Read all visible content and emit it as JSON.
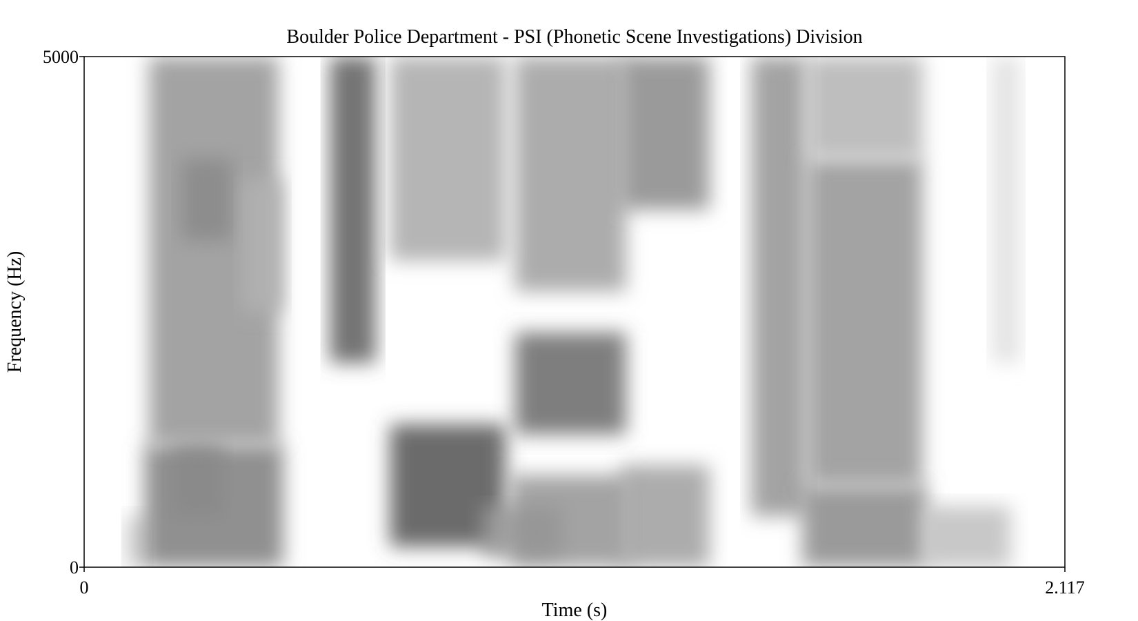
{
  "chart_data": {
    "type": "heatmap",
    "title": "Boulder Police Department - PSI (Phonetic Scene Investigations) Division",
    "xlabel": "Time (s)",
    "ylabel": "Frequency (Hz)",
    "xlim": [
      0,
      2.117
    ],
    "ylim": [
      0,
      5000
    ],
    "x_tick_labels": [
      "0",
      "2.117"
    ],
    "y_tick_labels": [
      "0",
      "5000"
    ],
    "colormap": "grayscale (white = low energy, black = high energy)",
    "grid": false,
    "legend": "none",
    "energy_regions": [
      {
        "t0": 0.09,
        "t1": 0.14,
        "f0": 0,
        "f1": 500,
        "intensity": 0.25
      },
      {
        "t0": 0.13,
        "t1": 0.43,
        "f0": 0,
        "f1": 1200,
        "intensity": 0.6
      },
      {
        "t0": 0.19,
        "t1": 0.3,
        "f0": 500,
        "f1": 1200,
        "intensity": 0.55
      },
      {
        "t0": 0.14,
        "t1": 0.42,
        "f0": 1200,
        "f1": 5000,
        "intensity": 0.5
      },
      {
        "t0": 0.21,
        "t1": 0.32,
        "f0": 3200,
        "f1": 4000,
        "intensity": 0.55
      },
      {
        "t0": 0.34,
        "t1": 0.43,
        "f0": 2500,
        "f1": 3800,
        "intensity": 0.35
      },
      {
        "t0": 0.53,
        "t1": 0.63,
        "f0": 2000,
        "f1": 5000,
        "intensity": 0.75
      },
      {
        "t0": 0.66,
        "t1": 0.91,
        "f0": 200,
        "f1": 1400,
        "intensity": 0.8
      },
      {
        "t0": 0.66,
        "t1": 0.91,
        "f0": 3000,
        "f1": 5000,
        "intensity": 0.4
      },
      {
        "t0": 0.86,
        "t1": 1.03,
        "f0": 100,
        "f1": 600,
        "intensity": 0.45
      },
      {
        "t0": 0.92,
        "t1": 1.18,
        "f0": 0,
        "f1": 900,
        "intensity": 0.5
      },
      {
        "t0": 0.93,
        "t1": 1.17,
        "f0": 1300,
        "f1": 2300,
        "intensity": 0.7
      },
      {
        "t0": 0.93,
        "t1": 1.17,
        "f0": 2700,
        "f1": 5000,
        "intensity": 0.45
      },
      {
        "t0": 1.16,
        "t1": 1.35,
        "f0": 0,
        "f1": 1000,
        "intensity": 0.45
      },
      {
        "t0": 1.16,
        "t1": 1.35,
        "f0": 3500,
        "f1": 5000,
        "intensity": 0.55
      },
      {
        "t0": 1.44,
        "t1": 1.56,
        "f0": 500,
        "f1": 5000,
        "intensity": 0.5
      },
      {
        "t0": 1.55,
        "t1": 1.82,
        "f0": 0,
        "f1": 800,
        "intensity": 0.55
      },
      {
        "t0": 1.56,
        "t1": 1.81,
        "f0": 800,
        "f1": 4000,
        "intensity": 0.5
      },
      {
        "t0": 1.56,
        "t1": 1.81,
        "f0": 4000,
        "f1": 5000,
        "intensity": 0.35
      },
      {
        "t0": 1.81,
        "t1": 2.0,
        "f0": 0,
        "f1": 600,
        "intensity": 0.3
      },
      {
        "t0": 1.96,
        "t1": 2.02,
        "f0": 2000,
        "f1": 5000,
        "intensity": 0.15
      }
    ]
  }
}
